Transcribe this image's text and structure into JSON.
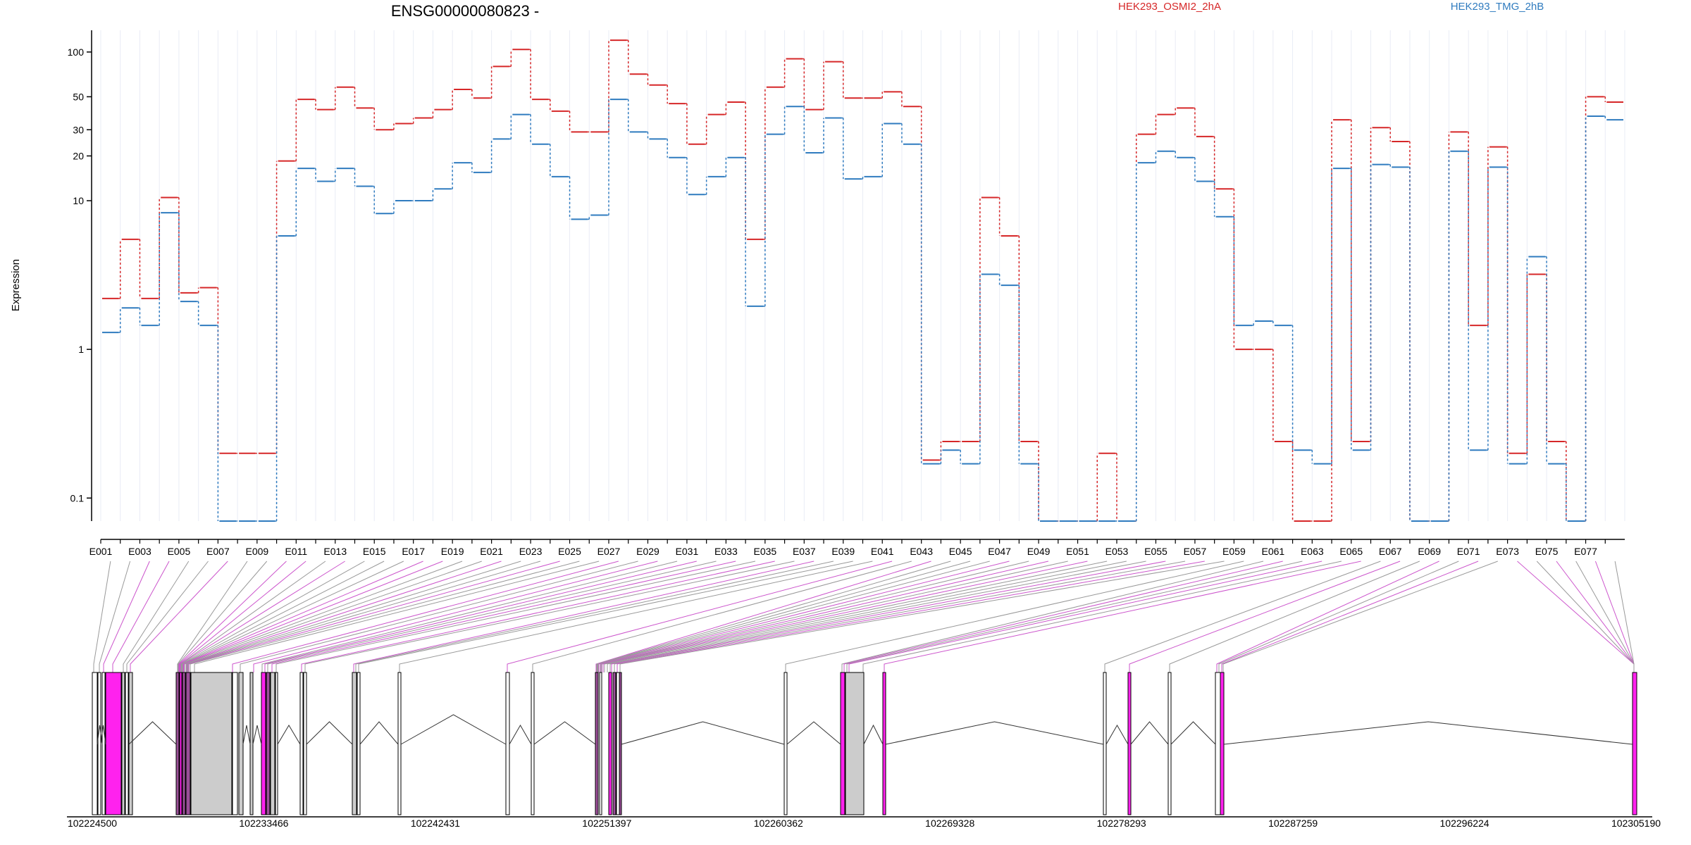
{
  "chart_data": {
    "type": "line",
    "title": "ENSG00000080823 -",
    "ylabel": "Expression",
    "yscale": "log",
    "ylim": [
      0.07,
      140
    ],
    "yticks": [
      0.1,
      1,
      10,
      20,
      30,
      50,
      100
    ],
    "ytick_labels": [
      "0.1",
      "1",
      "10",
      "20",
      "30",
      "50",
      "100"
    ],
    "grid": "vertical-light",
    "legend_placement": "top-right",
    "x_tick_labels": [
      "E001",
      "E003",
      "E005",
      "E007",
      "E009",
      "E011",
      "E013",
      "E015",
      "E017",
      "E019",
      "E021",
      "E023",
      "E025",
      "E027",
      "E029",
      "E031",
      "E033",
      "E035",
      "E037",
      "E039",
      "E041",
      "E043",
      "E045",
      "E047",
      "E049",
      "E051",
      "E053",
      "E055",
      "E057",
      "E059",
      "E061",
      "E063",
      "E065",
      "E067",
      "E069",
      "E071",
      "E073",
      "E075",
      "E077"
    ],
    "colors": {
      "series_a": "#d62728",
      "series_b": "#2f7bbf",
      "gray_exon": "#cccccc",
      "magenta_exon": "#ff22ee",
      "connector_gray": "#999999",
      "connector_magenta": "#cc55cc"
    },
    "series": [
      {
        "name": "HEK293_OSMI2_2hA",
        "color": "#d62728",
        "values": [
          2.2,
          5.5,
          2.2,
          10.5,
          2.4,
          2.6,
          0.2,
          0.2,
          0.2,
          18.5,
          48,
          41,
          58,
          42,
          30,
          33,
          36,
          41,
          56,
          49,
          80,
          104,
          48,
          40,
          29,
          29,
          120,
          71,
          60,
          45,
          24,
          38,
          46,
          5.5,
          58,
          90,
          41,
          86,
          49,
          49,
          54,
          43,
          0.18,
          0.24,
          0.24,
          10.5,
          5.8,
          0.24,
          0.07,
          0.07,
          0.07,
          0.2,
          0.07,
          28,
          38,
          42,
          27,
          12,
          1,
          1,
          0.24,
          0.07,
          0.07,
          35,
          0.24,
          31,
          25,
          0.07,
          0.07,
          29,
          1.45,
          23,
          0.2,
          3.2,
          0.24,
          0.07,
          50,
          46
        ]
      },
      {
        "name": "HEK293_TMG_2hB",
        "color": "#2f7bbf",
        "values": [
          1.3,
          1.9,
          1.45,
          8.3,
          2.1,
          1.45,
          0.07,
          0.07,
          0.07,
          5.8,
          16.5,
          13.5,
          16.5,
          12.5,
          8.2,
          10,
          10,
          12,
          18,
          15.5,
          26,
          38,
          24,
          14.5,
          7.5,
          8,
          48,
          29,
          26,
          19.5,
          11,
          14.5,
          19.5,
          1.95,
          28,
          43,
          21,
          36,
          14,
          14.5,
          33,
          24,
          0.17,
          0.21,
          0.17,
          3.2,
          2.7,
          0.17,
          0.07,
          0.07,
          0.07,
          0.07,
          0.07,
          18,
          21.5,
          19.5,
          13.5,
          7.8,
          1.45,
          1.55,
          1.45,
          0.21,
          0.17,
          16.5,
          0.21,
          17.5,
          16.8,
          0.07,
          0.07,
          21.5,
          0.21,
          16.8,
          0.17,
          4.2,
          0.17,
          0.07,
          37,
          35
        ]
      }
    ],
    "gene_model": {
      "position_labels": [
        "102224500",
        "102233466",
        "102242431",
        "102251397",
        "102260362",
        "102269328",
        "102278293",
        "102287259",
        "102296224",
        "102305190"
      ]
    }
  }
}
